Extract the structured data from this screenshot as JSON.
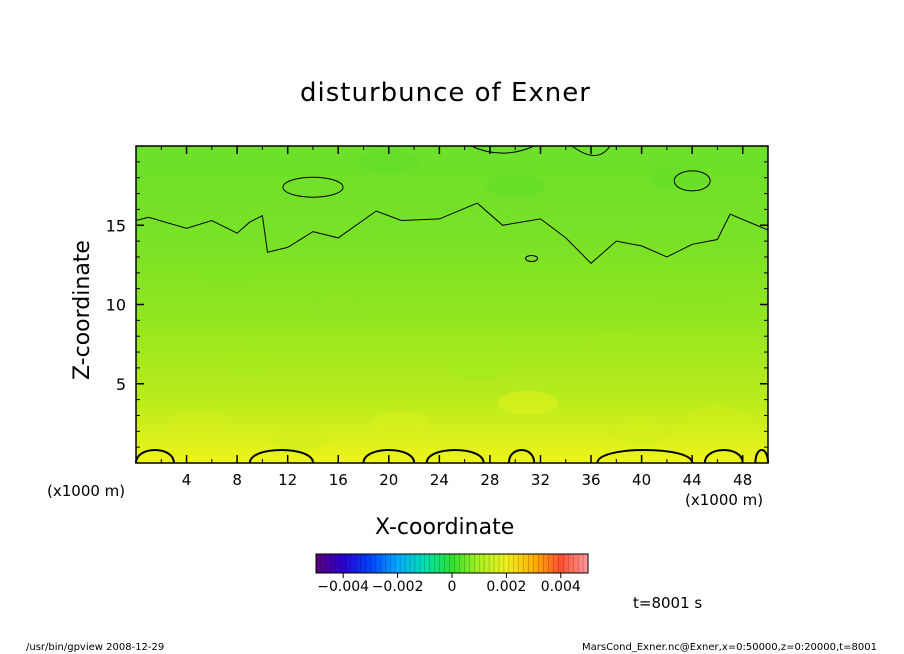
{
  "chart_data": {
    "type": "heatmap",
    "title": "disturbunce of Exner",
    "xlabel": "X-coordinate",
    "ylabel": "Z-coordinate",
    "x_unit_left": "(x1000 m)",
    "x_unit_right": "(x1000 m)",
    "xlim": [
      0,
      50
    ],
    "ylim": [
      0,
      20
    ],
    "x_ticks": [
      4,
      8,
      12,
      16,
      20,
      24,
      28,
      32,
      36,
      40,
      44,
      48
    ],
    "y_ticks": [
      5,
      10,
      15
    ],
    "colorbar": {
      "range": [
        -0.005,
        0.005
      ],
      "tick_values": [
        -0.004,
        -0.002,
        0,
        0.002,
        0.004
      ],
      "tick_labels": [
        "−0.004",
        "−0.002",
        "0",
        "0.002",
        "0.004"
      ]
    },
    "field_summary": "mostly green (≈ 0 to +0.0008) aloft, grading to yellow (≈ +0.0015 to +0.0022) near z = 0",
    "contour_zero_height_km": [
      15.3,
      15.5,
      14.8,
      15.3,
      14.5,
      15.2,
      15.6,
      13.3,
      13.6,
      14.6,
      14.2,
      15.9,
      15.3,
      15.4,
      16.4,
      15.0,
      15.4,
      14.2,
      12.6,
      14.0,
      13.7,
      13.0,
      13.8,
      14.1,
      15.7,
      14.7
    ],
    "contour_zero_x_km": [
      0,
      1,
      4,
      6,
      8,
      9,
      10,
      10.4,
      12,
      14,
      16,
      19,
      21,
      24,
      27,
      29,
      32,
      34,
      36,
      38,
      40,
      42,
      44,
      46,
      47,
      50
    ],
    "time_label": "t=8001 s"
  },
  "footer": {
    "left": "/usr/bin/gpview   2008-12-29",
    "right": "MarsCond_Exner.nc@Exner,x=0:50000,z=0:20000,t=8001"
  },
  "colors": {
    "field_top": "#6be02a",
    "field_mid": "#93e61f",
    "field_bottom": "#e6f21a",
    "contour": "#000000"
  }
}
